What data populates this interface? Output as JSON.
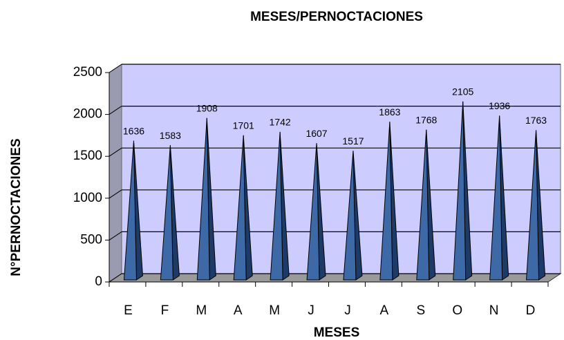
{
  "chart_data": {
    "type": "pyramid",
    "title": "MESES/PERNOCTACIONES",
    "x_label": "MESES",
    "y_label": "N°PERNOCTACIONES",
    "categories": [
      "E",
      "F",
      "M",
      "A",
      "M",
      "J",
      "J",
      "A",
      "S",
      "O",
      "N",
      "D"
    ],
    "values": [
      1636,
      1583,
      1908,
      1701,
      1742,
      1607,
      1517,
      1863,
      1768,
      2105,
      1936,
      1763
    ],
    "color": "#3d6aa6",
    "ylim": [
      0,
      2500
    ],
    "yticks": [
      0,
      500,
      1000,
      1500,
      2000,
      2500
    ],
    "grid": true
  }
}
